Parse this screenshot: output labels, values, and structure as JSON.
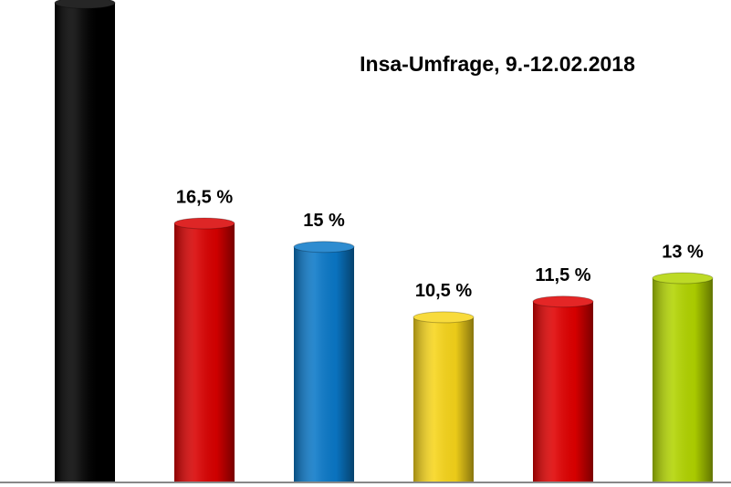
{
  "chart_data": {
    "type": "bar",
    "title": "Insa-Umfrage, 9.-12.02.2018",
    "categories": [
      null,
      null,
      null,
      null,
      null,
      null
    ],
    "values": [
      30.6,
      16.5,
      15,
      10.5,
      11.5,
      13
    ],
    "value_labels": [
      null,
      "16,5 %",
      "15 %",
      "10,5 %",
      "11,5 %",
      "13 %"
    ],
    "colors": [
      "#000000",
      "#d90000",
      "#0a78c8",
      "#f7d51a",
      "#e00000",
      "#b2d400"
    ]
  }
}
